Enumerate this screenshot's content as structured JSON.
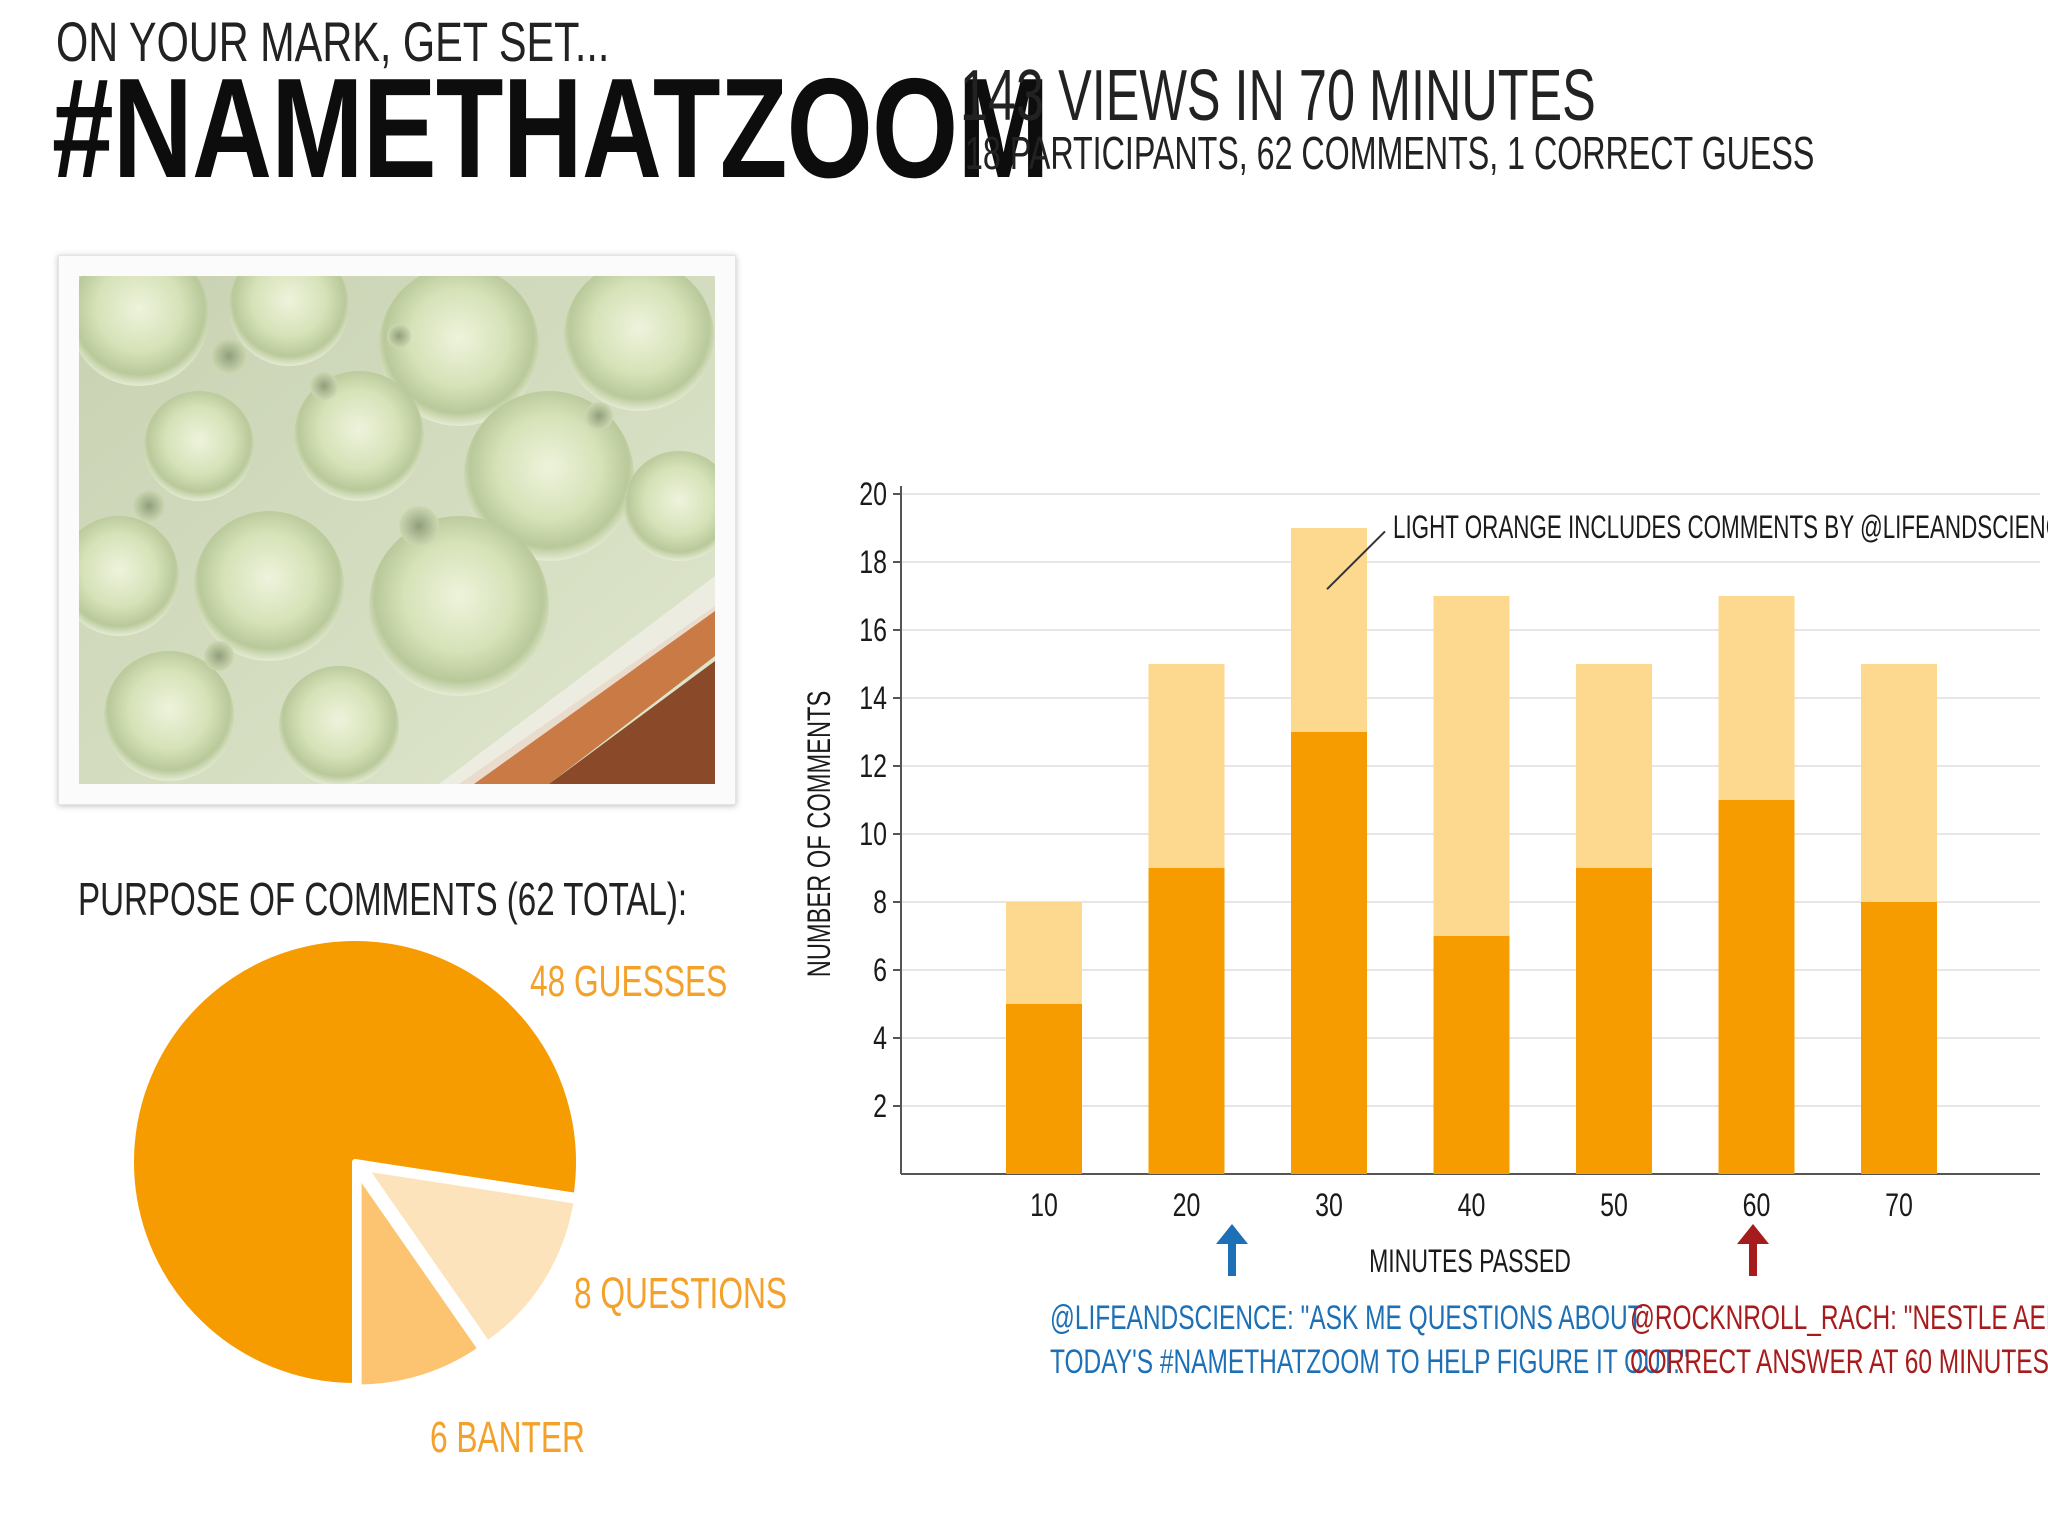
{
  "header": {
    "kicker": "ON YOUR MARK, GET SET...",
    "headline": "#NAMETHATZOOM",
    "views": "143 VIEWS IN 70 MINUTES",
    "stats": "18 PARTICIPANTS, 62 COMMENTS, 1 CORRECT GUESS"
  },
  "photo": {
    "icon": "zoomed-photo-icon"
  },
  "pie": {
    "title": "PURPOSE OF COMMENTS (62 TOTAL):",
    "slices": [
      {
        "label": "48 GUESSES",
        "value": 48,
        "color": "#f79c00",
        "label_color": "#f3a12a"
      },
      {
        "label": "8 QUESTIONS",
        "value": 8,
        "color": "#fde3bc",
        "label_color": "#f3a12a"
      },
      {
        "label": "6 BANTER",
        "value": 6,
        "color": "#fcc470",
        "label_color": "#f3a12a"
      }
    ]
  },
  "chart_data": {
    "type": "bar",
    "stacked": true,
    "categories": [
      "10",
      "20",
      "30",
      "40",
      "50",
      "60",
      "70"
    ],
    "series": [
      {
        "name": "Comments",
        "values": [
          5,
          9,
          13,
          7,
          9,
          11,
          8
        ],
        "color": "#f79c00"
      },
      {
        "name": "Comments by @LIFEANDSCIENCE",
        "values": [
          3,
          6,
          6,
          10,
          6,
          6,
          7
        ],
        "color": "#fcd98f"
      }
    ],
    "ylim": [
      0,
      20
    ],
    "yticks": [
      2,
      4,
      6,
      8,
      10,
      12,
      14,
      16,
      18,
      20
    ],
    "ylabel": "NUMBER OF COMMENTS",
    "xlabel": "MINUTES PASSED",
    "grid": true,
    "annotation": "LIGHT ORANGE INCLUDES COMMENTS BY @LIFEANDSCIENCE"
  },
  "annotations": {
    "blue": {
      "line1": "@LIFEANDSCIENCE: \"ASK ME QUESTIONS ABOUT",
      "line2": "TODAY'S #NAMETHATZOOM TO HELP FIGURE IT OUT.\"",
      "minute": 23,
      "color": "#1d70b6"
    },
    "red": {
      "line1": "@ROCKNROLL_RACH: \"NESTLE AERO\"",
      "line2": "CORRECT ANSWER AT 60 MINUTES",
      "minute": 60,
      "color": "#a61c1c"
    }
  }
}
